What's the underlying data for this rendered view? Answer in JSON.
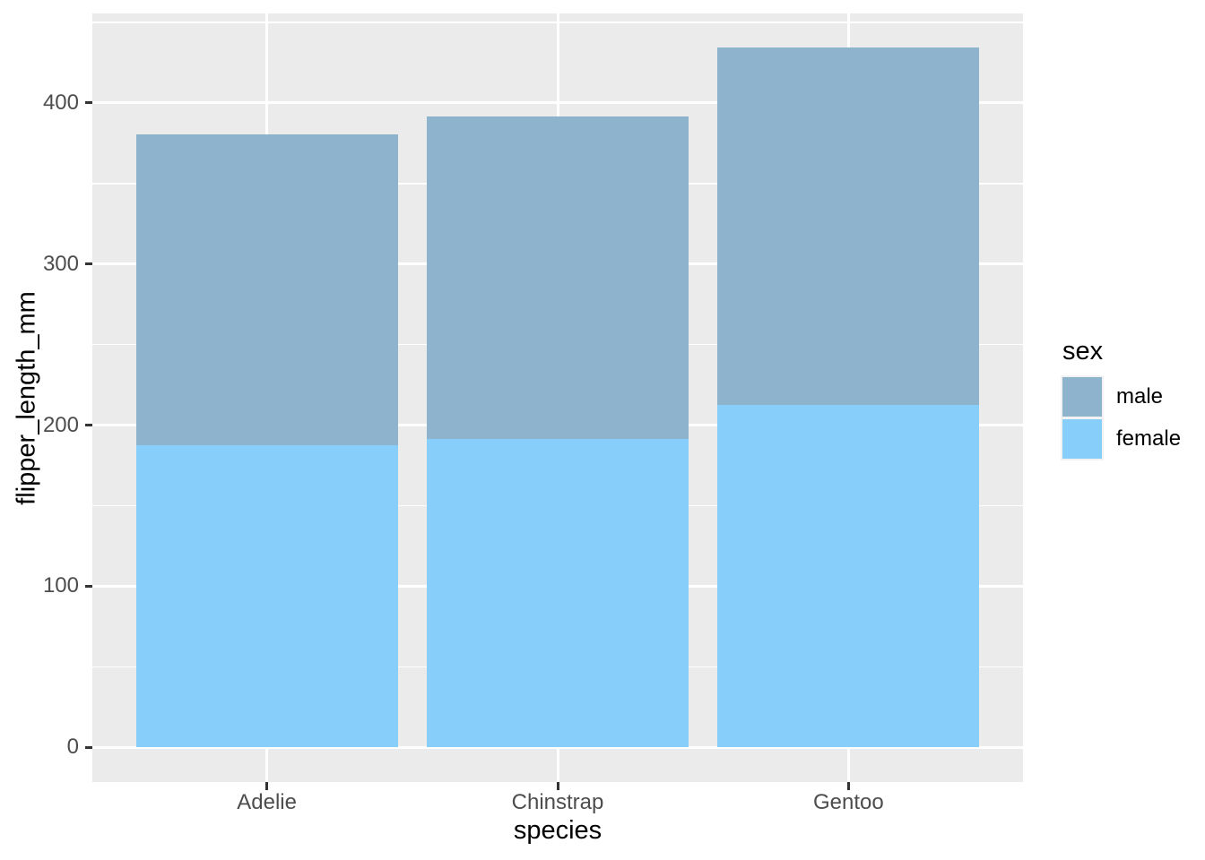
{
  "figure": {
    "background": "#FFFFFF",
    "panel_background": "#EBEBEB",
    "grid_color": "#FFFFFF",
    "tick_mark_color": "#333333",
    "tick_label_color": "#4D4D4D",
    "title_color": "#000000"
  },
  "chart_data": {
    "type": "bar",
    "subtype": "stacked",
    "title": "",
    "xlabel": "species",
    "ylabel": "flipper_length_mm",
    "categories": [
      "Adelie",
      "Chinstrap",
      "Gentoo"
    ],
    "series": [
      {
        "name": "female",
        "color": "#87CEFA",
        "values": [
          187.8,
          191.7,
          212.7
        ]
      },
      {
        "name": "male",
        "color": "#8DB4CC",
        "values": [
          192.4,
          199.9,
          221.5
        ]
      }
    ],
    "bar_totals": [
      380.2,
      391.6,
      434.2
    ],
    "y_axis": {
      "major_ticks": [
        0,
        100,
        200,
        300,
        400
      ],
      "minor_gridlines": [
        50,
        150,
        250,
        350,
        450
      ],
      "range": [
        -21.5,
        455.5
      ]
    },
    "x_axis": {
      "tick_labels": [
        "Adelie",
        "Chinstrap",
        "Gentoo"
      ]
    },
    "grid": true,
    "legend": {
      "title": "sex",
      "position": "right",
      "entries": [
        {
          "label": "male",
          "color": "#8DB4CC"
        },
        {
          "label": "female",
          "color": "#87CEFA"
        }
      ]
    }
  }
}
